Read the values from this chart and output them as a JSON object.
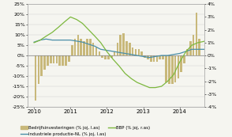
{
  "xlim_left": 2009.83,
  "xlim_right": 2014.67,
  "ylim_left": [
    -25,
    25
  ],
  "ylim_right": [
    -4,
    4
  ],
  "yticks_left": [
    -25,
    -20,
    -15,
    -10,
    -5,
    0,
    5,
    10,
    15,
    20,
    25
  ],
  "ytick_labels_left": [
    "-25%",
    "-20%",
    "-15%",
    "-10%",
    "-5%",
    "0%",
    "5%",
    "10%",
    "15%",
    "20%",
    "25%"
  ],
  "yticks_right": [
    -4,
    -3,
    -2,
    -1,
    0,
    1,
    2,
    3,
    4
  ],
  "ytick_labels_right": [
    "-4%",
    "-3%",
    "-2%",
    "-1%",
    "0%",
    "1%",
    "2%",
    "3%",
    "4%"
  ],
  "xticks": [
    2010,
    2011,
    2012,
    2013,
    2014
  ],
  "background_color": "#f5f5f0",
  "bar_color": "#c8b87a",
  "line1_color": "#4a8fa8",
  "line2_color": "#7db83e",
  "legend_labels": [
    "Bedrijfsinvesteringen (% joj, l.as)",
    "Industriele productie-NL (% joj, l.as)",
    "BBP (% joj, r.as)"
  ],
  "bar_dates": [
    2010.042,
    2010.125,
    2010.208,
    2010.292,
    2010.375,
    2010.458,
    2010.542,
    2010.625,
    2010.708,
    2010.792,
    2010.875,
    2010.958,
    2011.042,
    2011.125,
    2011.208,
    2011.292,
    2011.375,
    2011.458,
    2011.542,
    2011.625,
    2011.708,
    2011.792,
    2011.875,
    2011.958,
    2012.042,
    2012.125,
    2012.208,
    2012.292,
    2012.375,
    2012.458,
    2012.542,
    2012.625,
    2012.708,
    2012.792,
    2012.875,
    2012.958,
    2013.042,
    2013.125,
    2013.208,
    2013.292,
    2013.375,
    2013.458,
    2013.542,
    2013.625,
    2013.708,
    2013.792,
    2013.875,
    2013.958,
    2014.042,
    2014.125,
    2014.208,
    2014.292,
    2014.375,
    2014.458,
    2014.542
  ],
  "bar_values": [
    -22,
    -14,
    -10,
    -7,
    -5,
    -4,
    -4,
    -4,
    -5,
    -5,
    -5,
    -3,
    5,
    8,
    10,
    8,
    7,
    8,
    8,
    6,
    4,
    2,
    -1,
    -2,
    -2,
    -1,
    2,
    6,
    10,
    11,
    7,
    6,
    4,
    3,
    3,
    2,
    -1,
    -2,
    -3,
    -3,
    -3,
    -2,
    -2,
    -13,
    -14,
    -14,
    -13,
    -11,
    -8,
    -4,
    3,
    7,
    10,
    21,
    8
  ],
  "line1_dates": [
    2010.0,
    2010.17,
    2010.33,
    2010.5,
    2010.67,
    2010.83,
    2011.0,
    2011.17,
    2011.33,
    2011.5,
    2011.67,
    2011.83,
    2012.0,
    2012.17,
    2012.33,
    2012.5,
    2012.67,
    2012.83,
    2013.0,
    2013.17,
    2013.33,
    2013.5,
    2013.67,
    2013.83,
    2014.0,
    2014.17,
    2014.33,
    2014.5,
    2014.67
  ],
  "line1_values": [
    6.5,
    7.5,
    8.0,
    7.5,
    7.5,
    7.5,
    7.5,
    7.0,
    6.5,
    5.5,
    4.5,
    3.0,
    2.5,
    2.0,
    1.5,
    1.0,
    0.5,
    0.0,
    -0.5,
    -1.0,
    -0.5,
    0.0,
    0.0,
    0.5,
    1.0,
    2.0,
    3.0,
    3.0,
    3.0
  ],
  "line2_dates": [
    2010.0,
    2010.17,
    2010.33,
    2010.5,
    2010.67,
    2010.83,
    2011.0,
    2011.17,
    2011.33,
    2011.5,
    2011.67,
    2011.83,
    2012.0,
    2012.17,
    2012.33,
    2012.5,
    2012.67,
    2012.83,
    2013.0,
    2013.17,
    2013.33,
    2013.5,
    2013.67,
    2013.83,
    2014.0,
    2014.17,
    2014.33,
    2014.5,
    2014.67
  ],
  "line2_values_right": [
    1.0,
    1.2,
    1.5,
    1.8,
    2.2,
    2.6,
    3.0,
    2.8,
    2.5,
    2.0,
    1.5,
    1.0,
    0.3,
    -0.3,
    -0.8,
    -1.4,
    -1.8,
    -2.1,
    -2.3,
    -2.5,
    -2.5,
    -2.4,
    -2.0,
    -1.5,
    -0.5,
    0.3,
    0.8,
    1.0,
    1.1
  ]
}
